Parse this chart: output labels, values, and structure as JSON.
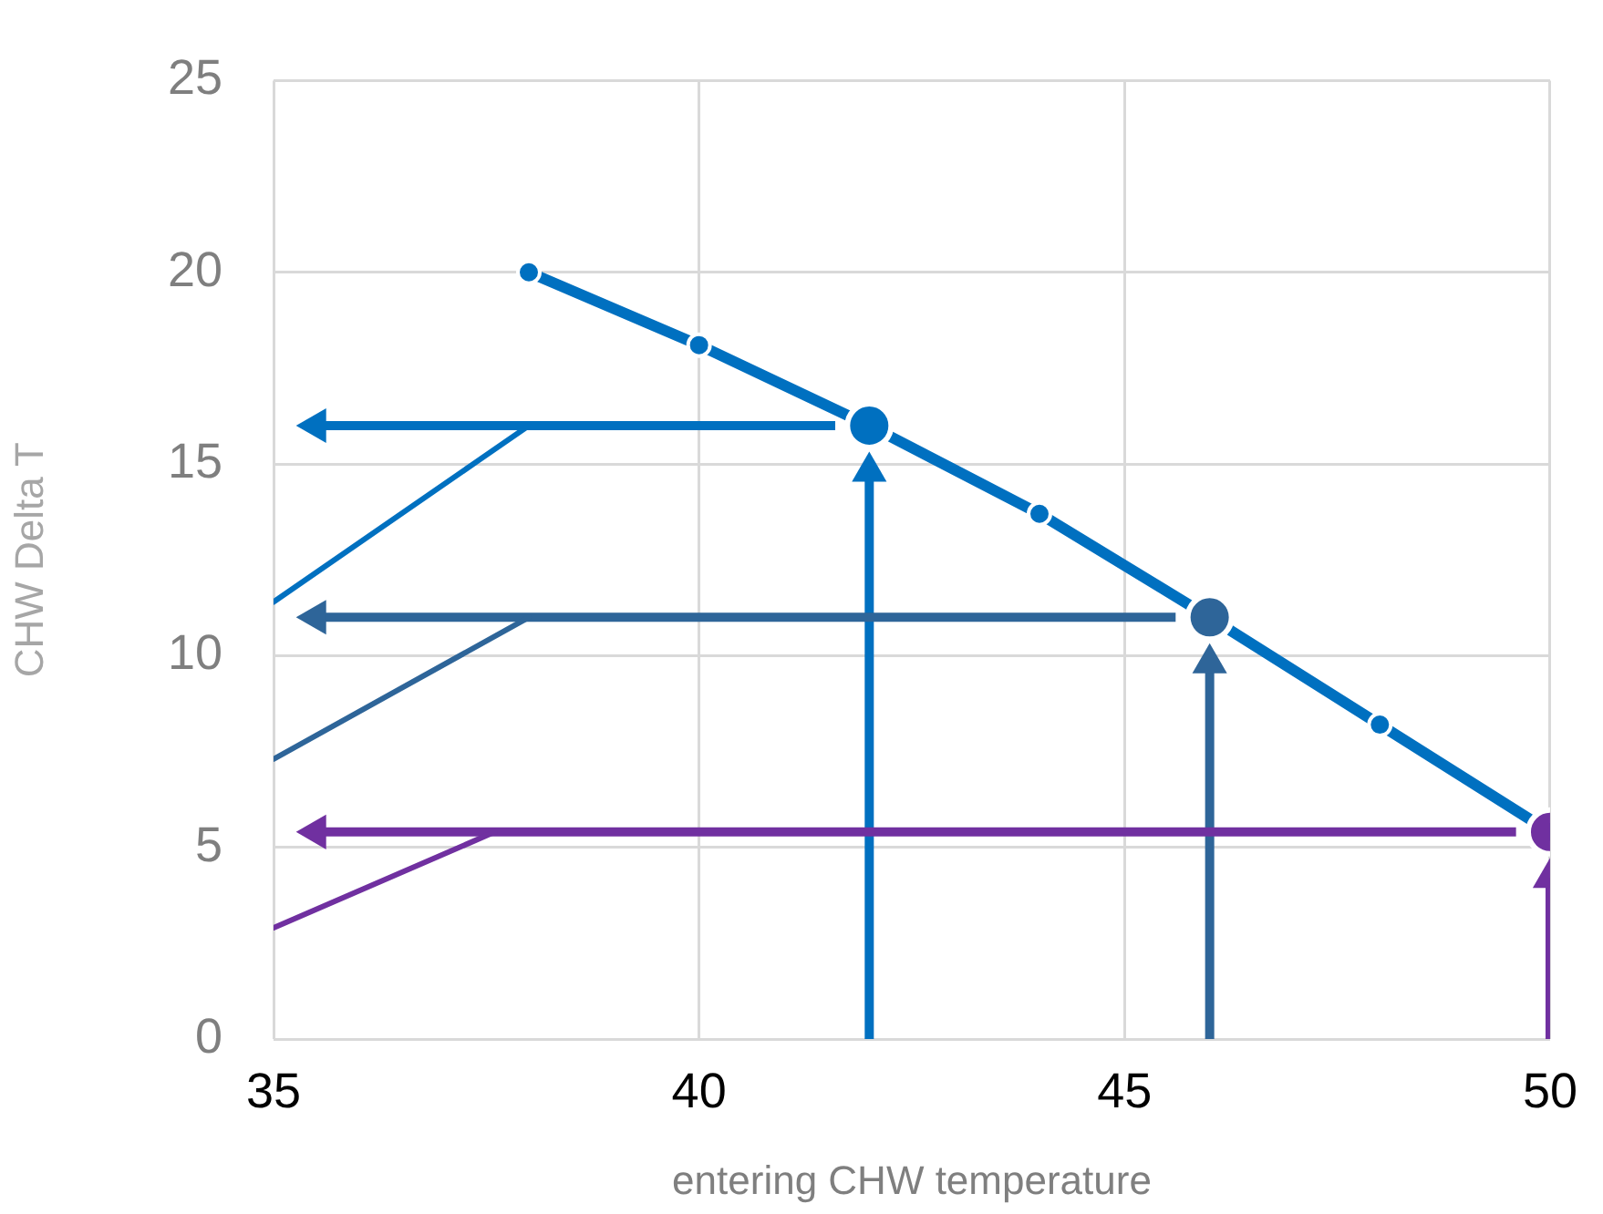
{
  "chart_data": {
    "type": "line",
    "xlabel": "entering CHW temperature",
    "ylabel": "CHW Delta T",
    "xlim": [
      35,
      50
    ],
    "xticks": [
      35,
      40,
      45,
      50
    ],
    "ylim": [
      0,
      25
    ],
    "yticks": [
      0,
      5,
      10,
      15,
      20,
      25
    ],
    "grid": true,
    "legend": false,
    "series": [
      {
        "color": "#0070c0",
        "x": [
          35,
          38
        ],
        "values": [
          11.4,
          16
        ],
        "marker": "none"
      },
      {
        "color": "#2e6599",
        "x": [
          35,
          38
        ],
        "values": [
          7.3,
          11
        ],
        "marker": "none"
      },
      {
        "color": "#7030a0",
        "x": [
          35,
          37.6
        ],
        "values": [
          2.9,
          5.4
        ],
        "marker": "none"
      },
      {
        "color": "#0070c0",
        "x": [
          41.6,
          35.5
        ],
        "values": [
          16,
          16
        ],
        "marker": "triangle"
      },
      {
        "color": "#2e6599",
        "x": [
          45.6,
          35.5
        ],
        "values": [
          11,
          11
        ],
        "marker": "triangle"
      },
      {
        "color": "#7030a0",
        "x": [
          49.6,
          35.5
        ],
        "values": [
          5.4,
          5.4
        ],
        "marker": "triangle"
      },
      {
        "color": "#0070c0",
        "x": [
          42,
          42
        ],
        "values": [
          0,
          14.8
        ],
        "marker": "triangle"
      },
      {
        "color": "#2e6599",
        "x": [
          46,
          46
        ],
        "values": [
          0,
          9.8
        ],
        "marker": "triangle"
      },
      {
        "color": "#7030a0",
        "x": [
          50,
          50
        ],
        "values": [
          0,
          4.2
        ],
        "marker": "triangle"
      },
      {
        "color": "#0070c0",
        "x": [
          38,
          40,
          42,
          44,
          46,
          48,
          50
        ],
        "values": [
          20,
          18.1,
          16,
          13.7,
          11,
          8.2,
          5.4
        ],
        "marker": "circle"
      },
      {
        "type": "scatter",
        "colors": [
          "#0070c0",
          "#2e6599",
          "#7030a0"
        ],
        "x": [
          42,
          46,
          50
        ],
        "values": [
          16,
          11,
          5.4
        ],
        "marker": "circle"
      }
    ]
  }
}
